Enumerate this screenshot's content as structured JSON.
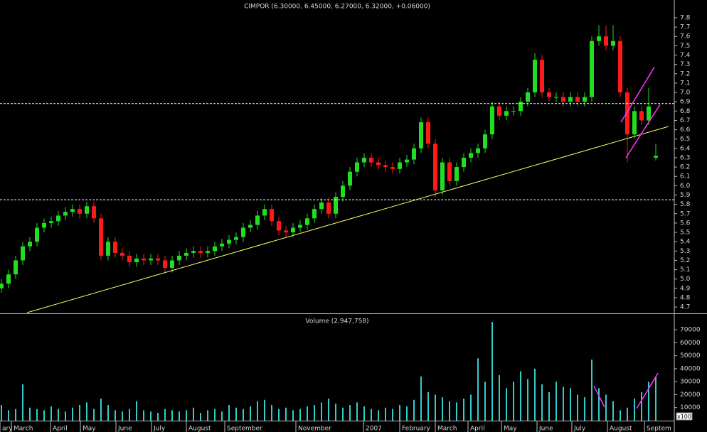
{
  "chart_data": [
    {
      "type": "candlestick",
      "title": "CIMPOR (6.30000, 6.45000, 6.27000, 6.32000, +0.06000)",
      "up_color": "#22dd22",
      "down_color": "#ff1a1a",
      "xlim": [
        -0.2,
        94.6
      ],
      "ylim": [
        4.64,
        7.99
      ],
      "yticks": [
        4.7,
        4.8,
        4.9,
        {
          "value": 5,
          "label": "5.0"
        },
        5.1,
        5.2,
        5.3,
        5.4,
        5.5,
        5.6,
        5.7,
        5.8,
        5.9,
        {
          "value": 6,
          "label": "6.0"
        },
        6.1,
        6.2,
        6.3,
        6.4,
        6.5,
        6.6,
        6.7,
        6.8,
        6.9,
        {
          "value": 7,
          "label": "7.0"
        },
        7.1,
        7.2,
        7.3,
        7.4,
        7.5,
        7.6,
        7.7,
        7.8
      ],
      "open": [
        4.9,
        4.95,
        5.05,
        5.2,
        5.35,
        5.4,
        5.55,
        5.6,
        5.62,
        5.68,
        5.72,
        5.75,
        5.7,
        5.78,
        5.65,
        5.25,
        5.4,
        5.28,
        5.25,
        5.18,
        5.22,
        5.2,
        5.22,
        5.2,
        5.12,
        5.2,
        5.25,
        5.28,
        5.3,
        5.28,
        5.3,
        5.35,
        5.38,
        5.42,
        5.45,
        5.55,
        5.58,
        5.68,
        5.75,
        5.62,
        5.52,
        5.5,
        5.55,
        5.58,
        5.65,
        5.75,
        5.82,
        5.7,
        5.88,
        6.0,
        6.15,
        6.25,
        6.3,
        6.25,
        6.22,
        6.2,
        6.18,
        6.25,
        6.28,
        6.4,
        6.68,
        6.45,
        5.95,
        6.25,
        6.05,
        6.2,
        6.3,
        6.35,
        6.4,
        6.55,
        6.85,
        6.75,
        6.8,
        6.8,
        6.9,
        7.0,
        7.35,
        7.0,
        6.95,
        6.95,
        6.9,
        6.95,
        6.9,
        6.95,
        7.55,
        7.6,
        7.5,
        7.55,
        7.0,
        6.55,
        6.8,
        6.7,
        6.3
      ],
      "high": [
        5.0,
        5.1,
        5.25,
        5.4,
        5.45,
        5.6,
        5.65,
        5.67,
        5.73,
        5.77,
        5.8,
        5.8,
        5.83,
        5.83,
        5.7,
        5.45,
        5.45,
        5.33,
        5.3,
        5.27,
        5.27,
        5.27,
        5.27,
        5.25,
        5.25,
        5.3,
        5.33,
        5.35,
        5.35,
        5.35,
        5.4,
        5.43,
        5.47,
        5.5,
        5.6,
        5.63,
        5.73,
        5.8,
        5.8,
        5.67,
        5.57,
        5.6,
        5.63,
        5.7,
        5.8,
        5.87,
        5.87,
        5.93,
        6.05,
        6.2,
        6.3,
        6.35,
        6.35,
        6.3,
        6.27,
        6.25,
        6.3,
        6.33,
        6.45,
        6.73,
        6.73,
        6.5,
        6.3,
        6.3,
        6.25,
        6.35,
        6.4,
        6.45,
        6.6,
        6.9,
        6.9,
        6.85,
        6.85,
        6.95,
        7.05,
        7.42,
        7.4,
        7.05,
        7.0,
        7.0,
        7.0,
        7.0,
        7.0,
        7.6,
        7.72,
        7.72,
        7.72,
        7.6,
        7.05,
        6.85,
        6.85,
        7.05,
        6.45
      ],
      "low": [
        4.85,
        4.9,
        5.0,
        5.15,
        5.3,
        5.35,
        5.5,
        5.55,
        5.57,
        5.63,
        5.67,
        5.65,
        5.65,
        5.6,
        5.2,
        5.2,
        5.23,
        5.2,
        5.13,
        5.13,
        5.15,
        5.15,
        5.15,
        5.07,
        5.07,
        5.15,
        5.2,
        5.23,
        5.23,
        5.23,
        5.25,
        5.3,
        5.33,
        5.37,
        5.4,
        5.5,
        5.53,
        5.63,
        5.57,
        5.47,
        5.45,
        5.45,
        5.5,
        5.53,
        5.6,
        5.7,
        5.65,
        5.65,
        5.83,
        5.95,
        6.1,
        6.2,
        6.2,
        6.17,
        6.15,
        6.13,
        6.13,
        6.2,
        6.23,
        6.35,
        6.4,
        5.88,
        5.9,
        6.0,
        6.0,
        6.15,
        6.25,
        6.3,
        6.35,
        6.5,
        6.7,
        6.7,
        6.75,
        6.75,
        6.85,
        6.95,
        6.95,
        6.9,
        6.9,
        6.85,
        6.85,
        6.85,
        6.85,
        6.9,
        7.5,
        7.45,
        7.45,
        6.95,
        6.25,
        6.5,
        6.65,
        6.65,
        6.27
      ],
      "close": [
        4.95,
        5.05,
        5.2,
        5.35,
        5.4,
        5.55,
        5.6,
        5.62,
        5.68,
        5.72,
        5.75,
        5.7,
        5.78,
        5.65,
        5.25,
        5.4,
        5.28,
        5.25,
        5.18,
        5.22,
        5.2,
        5.22,
        5.2,
        5.12,
        5.2,
        5.25,
        5.28,
        5.3,
        5.28,
        5.3,
        5.35,
        5.38,
        5.42,
        5.45,
        5.55,
        5.58,
        5.68,
        5.75,
        5.62,
        5.52,
        5.5,
        5.55,
        5.58,
        5.65,
        5.75,
        5.82,
        5.7,
        5.88,
        6.0,
        6.15,
        6.25,
        6.3,
        6.25,
        6.22,
        6.2,
        6.18,
        6.25,
        6.28,
        6.4,
        6.68,
        6.45,
        5.95,
        6.25,
        6.05,
        6.2,
        6.3,
        6.35,
        6.4,
        6.55,
        6.85,
        6.75,
        6.8,
        6.8,
        6.9,
        7.0,
        7.35,
        7.0,
        6.95,
        6.95,
        6.9,
        6.95,
        6.9,
        6.95,
        7.55,
        7.6,
        7.5,
        7.55,
        7.0,
        6.55,
        6.8,
        6.7,
        6.85,
        6.32
      ],
      "hlines": [
        6.88,
        5.85
      ],
      "hline_color": "#ffffff",
      "trendlines": [
        {
          "color": "#ffff66",
          "x": [
            3.6,
            93.8
          ],
          "y": [
            4.64,
            6.635
          ]
        },
        {
          "color": "#ff33ff",
          "x": [
            87.1,
            91.8
          ],
          "y": [
            6.68,
            7.27
          ]
        },
        {
          "color": "#ff33ff",
          "x": [
            87.8,
            92.6
          ],
          "y": [
            6.3,
            6.87
          ]
        }
      ]
    },
    {
      "type": "bar",
      "title": "Volume (2,947,758)",
      "unit_label": "x100",
      "color": "#33cccc",
      "xlim": [
        -0.2,
        94.6
      ],
      "ylim": [
        0,
        81000
      ],
      "yticks": [
        10000,
        20000,
        30000,
        40000,
        50000,
        60000,
        70000
      ],
      "values": [
        12000,
        8000,
        9000,
        28000,
        10000,
        9000,
        8000,
        11000,
        9000,
        7000,
        10000,
        12000,
        14000,
        9000,
        17000,
        12000,
        8000,
        7000,
        9000,
        15000,
        8000,
        7000,
        6000,
        9000,
        8000,
        7000,
        8000,
        10000,
        6000,
        8000,
        9000,
        7000,
        12000,
        10000,
        9000,
        11000,
        15000,
        16000,
        12000,
        9000,
        10000,
        8000,
        9000,
        11000,
        12000,
        14000,
        17000,
        13000,
        10000,
        12000,
        14000,
        11000,
        9000,
        8000,
        10000,
        9000,
        12000,
        11000,
        16000,
        34000,
        22000,
        20000,
        18000,
        15000,
        14000,
        17000,
        20000,
        48000,
        30000,
        76000,
        35000,
        25000,
        30000,
        38000,
        32000,
        40000,
        28000,
        22000,
        30000,
        26000,
        25000,
        20000,
        18000,
        47000,
        25000,
        20000,
        15000,
        8000,
        10000,
        17000,
        22000,
        30000,
        34000
      ],
      "xticks": [
        {
          "value": -0.2,
          "label": "ary"
        },
        {
          "value": 1.4,
          "label": "March"
        },
        {
          "value": 6.9,
          "label": "April"
        },
        {
          "value": 11.1,
          "label": "May"
        },
        {
          "value": 16.1,
          "label": "June"
        },
        {
          "value": 21.1,
          "label": "July"
        },
        {
          "value": 26.0,
          "label": "August"
        },
        {
          "value": 31.4,
          "label": "September"
        },
        {
          "value": 41.4,
          "label": "November"
        },
        {
          "value": 50.9,
          "label": "2007"
        },
        {
          "value": 56.0,
          "label": "February"
        },
        {
          "value": 61.0,
          "label": "March"
        },
        {
          "value": 65.6,
          "label": "April"
        },
        {
          "value": 70.3,
          "label": "May"
        },
        {
          "value": 75.3,
          "label": "June"
        },
        {
          "value": 80.2,
          "label": "July"
        },
        {
          "value": 85.2,
          "label": "August"
        },
        {
          "value": 90.4,
          "label": "Septem"
        }
      ],
      "trendlines": [
        {
          "color": "#ff33ff",
          "x": [
            83.3,
            84.8
          ],
          "y": [
            26700,
            10400
          ]
        },
        {
          "color": "#ff33ff",
          "x": [
            89.3,
            92.3
          ],
          "y": [
            9300,
            36500
          ]
        }
      ]
    }
  ]
}
